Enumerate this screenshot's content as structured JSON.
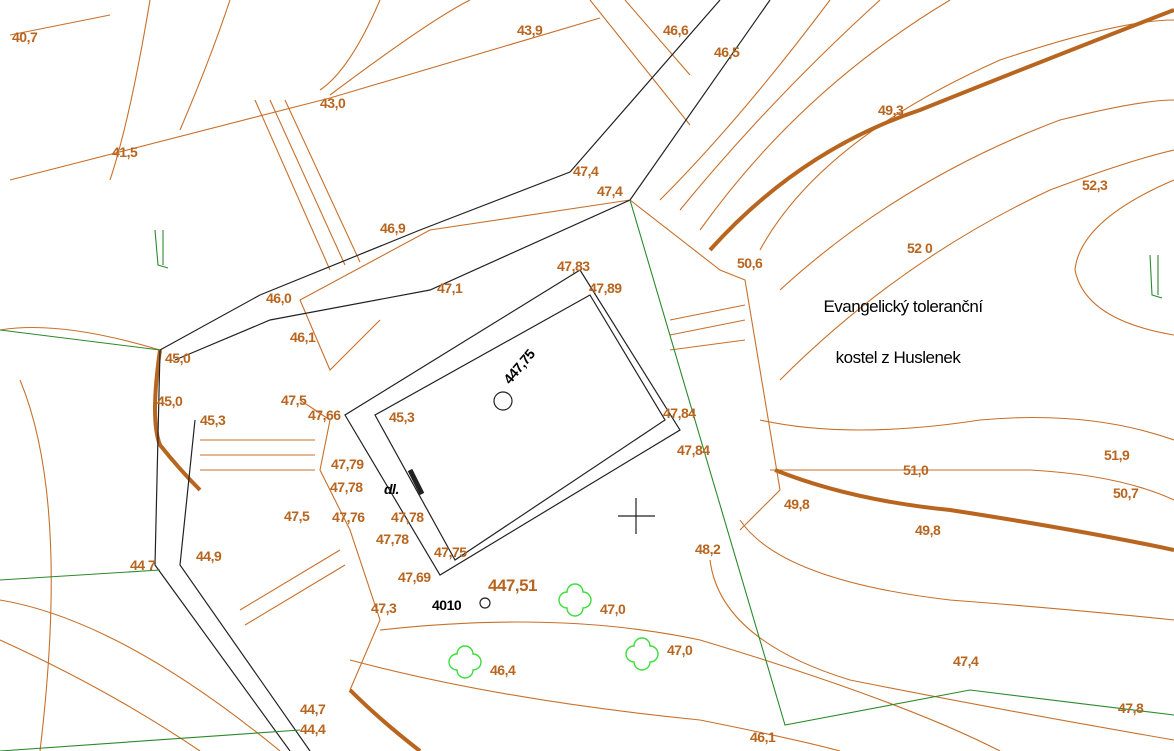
{
  "church_name": [
    "Evangelický toleranční",
    "kostel z Huslenek"
  ],
  "point_id": "4010",
  "spot_heights": [
    "447,75",
    "447,51"
  ],
  "note": "dl.",
  "elevations": [
    "40,7",
    "43,9",
    "46,6",
    "46,5",
    "43,0",
    "49,3",
    "41,5",
    "47,4",
    "47,4",
    "52,3",
    "46,9",
    "52 0",
    "50,6",
    "47,83",
    "47,89",
    "47,1",
    "46,0",
    "46,1",
    "45,0",
    "45,0",
    "47,5",
    "47,66",
    "45,3",
    "45,3",
    "47,84",
    "47,84",
    "47,79",
    "47,78",
    "51,9",
    "51,0",
    "50,7",
    "47,5",
    "47,76",
    "47,78",
    "49,8",
    "47,78",
    "49,8",
    "47,75",
    "48,2",
    "44 7",
    "44,9",
    "47,69",
    "47,0",
    "47,3",
    "47,0",
    "46,4",
    "47,4",
    "47,8",
    "44,7",
    "44,4",
    "46,1"
  ]
}
